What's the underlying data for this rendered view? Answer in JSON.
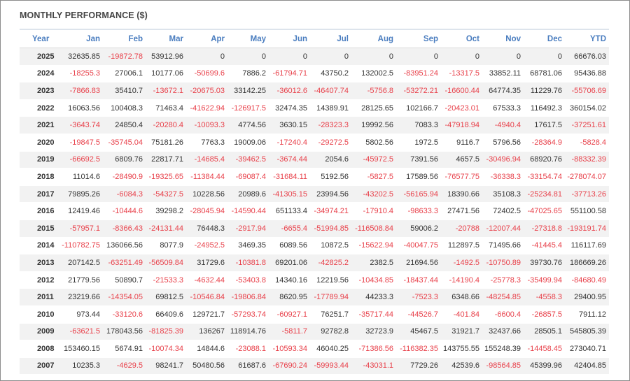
{
  "title": "MONTHLY PERFORMANCE ($)",
  "colors": {
    "header": "#4a7dbf",
    "negative": "#e8404a",
    "stripe": "#f2f2f2"
  },
  "columns": [
    "Year",
    "Jan",
    "Feb",
    "Mar",
    "Apr",
    "May",
    "Jun",
    "Jul",
    "Aug",
    "Sep",
    "Oct",
    "Nov",
    "Dec",
    "YTD"
  ],
  "rows": [
    [
      "2025",
      "32635.85",
      "-19872.78",
      "53912.96",
      "0",
      "0",
      "0",
      "0",
      "0",
      "0",
      "0",
      "0",
      "0",
      "66676.03"
    ],
    [
      "2024",
      "-18255.3",
      "27006.1",
      "10177.06",
      "-50699.6",
      "7886.2",
      "-61794.71",
      "43750.2",
      "132002.5",
      "-83951.24",
      "-13317.5",
      "33852.11",
      "68781.06",
      "95436.88"
    ],
    [
      "2023",
      "-7866.83",
      "35410.7",
      "-13672.1",
      "-20675.03",
      "33142.25",
      "-36012.6",
      "-46407.74",
      "-5756.8",
      "-53272.21",
      "-16600.44",
      "64774.35",
      "11229.76",
      "-55706.69"
    ],
    [
      "2022",
      "16063.56",
      "100408.3",
      "71463.4",
      "-41622.94",
      "-126917.5",
      "32474.35",
      "14389.91",
      "28125.65",
      "102166.7",
      "-20423.01",
      "67533.3",
      "116492.3",
      "360154.02"
    ],
    [
      "2021",
      "-3643.74",
      "24850.4",
      "-20280.4",
      "-10093.3",
      "4774.56",
      "3630.15",
      "-28323.3",
      "19992.56",
      "7083.3",
      "-47918.94",
      "-4940.4",
      "17617.5",
      "-37251.61"
    ],
    [
      "2020",
      "-19847.5",
      "-35745.04",
      "75181.26",
      "7763.3",
      "19009.06",
      "-17240.4",
      "-29272.5",
      "5802.56",
      "1972.5",
      "9116.7",
      "5796.56",
      "-28364.9",
      "-5828.4"
    ],
    [
      "2019",
      "-66692.5",
      "6809.76",
      "22817.71",
      "-14685.4",
      "-39462.5",
      "-3674.44",
      "2054.6",
      "-45972.5",
      "7391.56",
      "4657.5",
      "-30496.94",
      "68920.76",
      "-88332.39"
    ],
    [
      "2018",
      "11014.6",
      "-28490.9",
      "-19325.65",
      "-11384.44",
      "-69087.4",
      "-31684.11",
      "5192.56",
      "-5827.5",
      "17589.56",
      "-76577.75",
      "-36338.3",
      "-33154.74",
      "-278074.07"
    ],
    [
      "2017",
      "79895.26",
      "-6084.3",
      "-54327.5",
      "10228.56",
      "20989.6",
      "-41305.15",
      "23994.56",
      "-43202.5",
      "-56165.94",
      "18390.66",
      "35108.3",
      "-25234.81",
      "-37713.26"
    ],
    [
      "2016",
      "12419.46",
      "-10444.6",
      "39298.2",
      "-28045.94",
      "-14590.44",
      "651133.4",
      "-34974.21",
      "-17910.4",
      "-98633.3",
      "27471.56",
      "72402.5",
      "-47025.65",
      "551100.58"
    ],
    [
      "2015",
      "-57957.1",
      "-8366.43",
      "-24131.44",
      "76448.3",
      "-2917.94",
      "-6655.4",
      "-51994.85",
      "-116508.84",
      "59006.2",
      "-20788",
      "-12007.44",
      "-27318.8",
      "-193191.74"
    ],
    [
      "2014",
      "-110782.75",
      "136066.56",
      "8077.9",
      "-24952.5",
      "3469.35",
      "6089.56",
      "10872.5",
      "-15622.94",
      "-40047.75",
      "112897.5",
      "71495.66",
      "-41445.4",
      "116117.69"
    ],
    [
      "2013",
      "207142.5",
      "-63251.49",
      "-56509.84",
      "31729.6",
      "-10381.8",
      "69201.06",
      "-42825.2",
      "2382.5",
      "21694.56",
      "-1492.5",
      "-10750.89",
      "39730.76",
      "186669.26"
    ],
    [
      "2012",
      "21779.56",
      "50890.7",
      "-21533.3",
      "-4632.44",
      "-53403.8",
      "14340.16",
      "12219.56",
      "-10434.85",
      "-18437.44",
      "-14190.4",
      "-25778.3",
      "-35499.94",
      "-84680.49"
    ],
    [
      "2011",
      "23219.66",
      "-14354.05",
      "69812.5",
      "-10546.84",
      "-19806.84",
      "8620.95",
      "-17789.94",
      "44233.3",
      "-7523.3",
      "6348.66",
      "-48254.85",
      "-4558.3",
      "29400.95"
    ],
    [
      "2010",
      "973.44",
      "-33120.6",
      "66409.6",
      "129721.7",
      "-57293.74",
      "-60927.1",
      "76251.7",
      "-35717.44",
      "-44526.7",
      "-401.84",
      "-6600.4",
      "-26857.5",
      "7911.12"
    ],
    [
      "2009",
      "-63621.5",
      "178043.56",
      "-81825.39",
      "136267",
      "118914.76",
      "-5811.7",
      "92782.8",
      "32723.9",
      "45467.5",
      "31921.7",
      "32437.66",
      "28505.1",
      "545805.39"
    ],
    [
      "2008",
      "153460.15",
      "5674.91",
      "-10074.34",
      "14844.6",
      "-23088.1",
      "-10593.34",
      "46040.25",
      "-71386.56",
      "-116382.35",
      "143755.55",
      "155248.39",
      "-14458.45",
      "273040.71"
    ],
    [
      "2007",
      "10235.3",
      "-4629.5",
      "98241.7",
      "50480.56",
      "61687.6",
      "-67690.24",
      "-59993.44",
      "-43031.1",
      "7729.26",
      "42539.6",
      "-98564.85",
      "45399.96",
      "42404.85"
    ]
  ]
}
